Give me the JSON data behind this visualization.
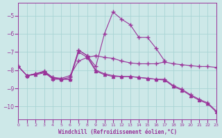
{
  "background_color": "#cde8e8",
  "grid_color": "#a8d4d4",
  "line_color": "#993399",
  "xlabel": "Windchill (Refroidissement éolien,°C)",
  "xlim": [
    0,
    23
  ],
  "ylim": [
    -10.7,
    -4.3
  ],
  "yticks": [
    -10,
    -9,
    -8,
    -7,
    -6,
    -5
  ],
  "xticks": [
    0,
    1,
    2,
    3,
    4,
    5,
    6,
    7,
    8,
    9,
    10,
    11,
    12,
    13,
    14,
    15,
    16,
    17,
    18,
    19,
    20,
    21,
    22,
    23
  ],
  "series": [
    {
      "x": [
        0,
        1,
        2,
        3,
        4,
        5,
        6,
        7,
        8,
        9,
        10,
        11,
        12,
        13,
        14,
        15,
        16,
        17
      ],
      "y": [
        -7.8,
        -8.3,
        -8.2,
        -8.1,
        -8.5,
        -8.5,
        -8.4,
        -6.9,
        -7.2,
        -7.8,
        -6.0,
        -4.8,
        -5.2,
        -5.5,
        -6.2,
        -6.2,
        -6.8,
        -7.5
      ],
      "marker": "+",
      "ms": 4
    },
    {
      "x": [
        0,
        1,
        2,
        3,
        4,
        5,
        6,
        7,
        8,
        9,
        10,
        11,
        12,
        13,
        14,
        15,
        16,
        17,
        18,
        19,
        20,
        21,
        22,
        23
      ],
      "y": [
        -7.8,
        -8.3,
        -8.2,
        -8.05,
        -8.4,
        -8.45,
        -8.3,
        -7.5,
        -7.3,
        -7.2,
        -7.3,
        -7.35,
        -7.5,
        -7.6,
        -7.65,
        -7.65,
        -7.65,
        -7.55,
        -7.65,
        -7.7,
        -7.75,
        -7.8,
        -7.8,
        -7.85
      ],
      "marker": "+",
      "ms": 4
    },
    {
      "x": [
        0,
        1,
        2,
        3,
        4,
        5,
        6,
        7,
        8,
        9,
        10,
        11,
        12,
        13,
        14,
        15,
        16,
        17,
        18,
        19,
        20,
        21,
        22,
        23
      ],
      "y": [
        -7.8,
        -8.3,
        -8.2,
        -8.1,
        -8.4,
        -8.5,
        -8.5,
        -6.9,
        -7.2,
        -8.0,
        -8.2,
        -8.3,
        -8.35,
        -8.35,
        -8.4,
        -8.45,
        -8.5,
        -8.5,
        -8.85,
        -9.05,
        -9.35,
        -9.6,
        -9.8,
        -10.25
      ],
      "marker": "+",
      "ms": 4
    },
    {
      "x": [
        0,
        1,
        2,
        3,
        4,
        5,
        6,
        7,
        8,
        9,
        10,
        11,
        12,
        13,
        14,
        15,
        16,
        17,
        18,
        19,
        20,
        21,
        22,
        23
      ],
      "y": [
        -7.8,
        -8.3,
        -8.25,
        -8.15,
        -8.45,
        -8.5,
        -8.5,
        -7.0,
        -7.3,
        -8.05,
        -8.25,
        -8.35,
        -8.35,
        -8.35,
        -8.4,
        -8.45,
        -8.5,
        -8.55,
        -8.9,
        -9.1,
        -9.4,
        -9.65,
        -9.85,
        -10.3
      ],
      "marker": "^",
      "ms": 3
    }
  ]
}
